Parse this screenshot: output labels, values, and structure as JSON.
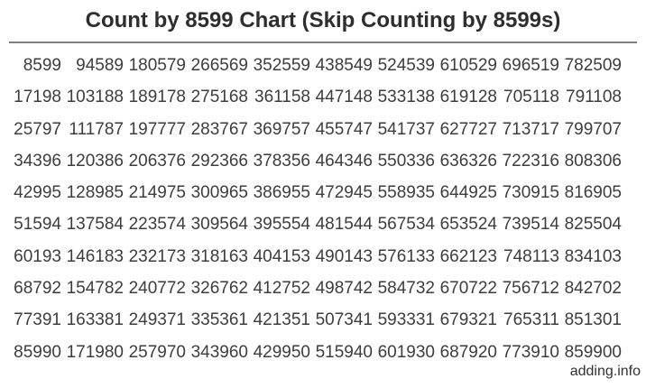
{
  "title": "Count by 8599 Chart (Skip Counting by 8599s)",
  "footer": {
    "site": "adding.info"
  },
  "colors": {
    "background": "#ffffff",
    "title_text": "#2e2e2e",
    "number_text": "#3d3d3d",
    "divider": "#7f7f7f",
    "footer_text": "#333333"
  },
  "chart_data": {
    "type": "table",
    "title": "Count by 8599 Chart (Skip Counting by 8599s)",
    "layout": {
      "columns": 10,
      "rows_count": 10,
      "order": "column-major",
      "cell_alignment": "right",
      "grid_lines": false
    },
    "rows": [
      [
        8599,
        94589,
        180579,
        266569,
        352559,
        438549,
        524539,
        610529,
        696519,
        782509
      ],
      [
        17198,
        103188,
        189178,
        275168,
        361158,
        447148,
        533138,
        619128,
        705118,
        791108
      ],
      [
        25797,
        111787,
        197777,
        283767,
        369757,
        455747,
        541737,
        627727,
        713717,
        799707
      ],
      [
        34396,
        120386,
        206376,
        292366,
        378356,
        464346,
        550336,
        636326,
        722316,
        808306
      ],
      [
        42995,
        128985,
        214975,
        300965,
        386955,
        472945,
        558935,
        644925,
        730915,
        816905
      ],
      [
        51594,
        137584,
        223574,
        309564,
        395554,
        481544,
        567534,
        653524,
        739514,
        825504
      ],
      [
        60193,
        146183,
        232173,
        318163,
        404153,
        490143,
        576133,
        662123,
        748113,
        834103
      ],
      [
        68792,
        154782,
        240772,
        326762,
        412752,
        498742,
        584732,
        670722,
        756712,
        842702
      ],
      [
        77391,
        163381,
        249371,
        335361,
        421351,
        507341,
        593331,
        679321,
        765311,
        851301
      ],
      [
        85990,
        171980,
        257970,
        343960,
        429950,
        515940,
        601930,
        687920,
        773910,
        859900
      ]
    ]
  }
}
